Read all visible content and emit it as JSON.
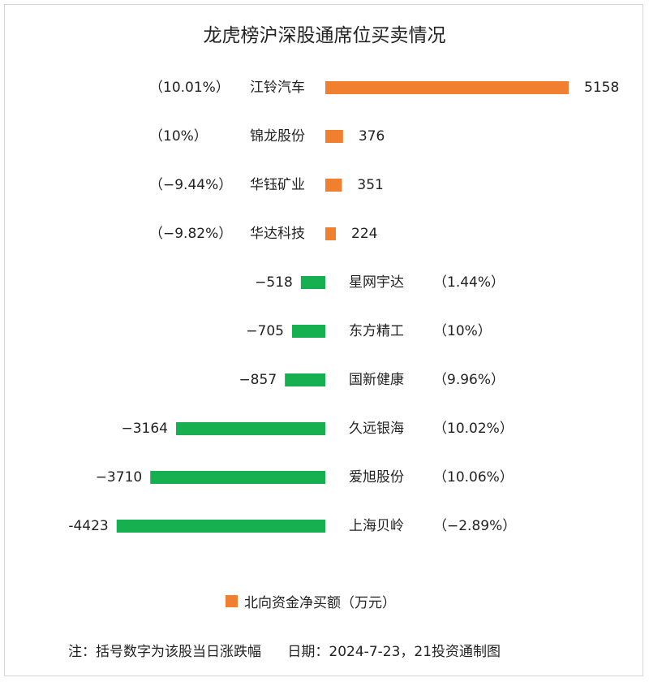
{
  "title": "龙虎榜沪深股通席位买卖情况",
  "colors": {
    "positive": "#f07f30",
    "negative": "#16b050",
    "text": "#222222"
  },
  "chart_data": {
    "type": "bar",
    "orientation": "horizontal",
    "title": "龙虎榜沪深股通席位买卖情况",
    "series": [
      {
        "name": "北向资金净买额（万元）",
        "values": [
          5158,
          376,
          351,
          224,
          -518,
          -705,
          -857,
          -3164,
          -3710,
          -4423
        ]
      }
    ],
    "categories": [
      "江铃汽车",
      "锦龙股份",
      "华钰矿业",
      "华达科技",
      "星网宇达",
      "东方精工",
      "国新健康",
      "久远银海",
      "爱旭股份",
      "上海贝岭"
    ],
    "bars": [
      {
        "name": "江铃汽车",
        "value": 5158,
        "value_label": "5158",
        "change_label": "（10.01%）"
      },
      {
        "name": "锦龙股份",
        "value": 376,
        "value_label": "376",
        "change_label": "（10%）"
      },
      {
        "name": "华钰矿业",
        "value": 351,
        "value_label": "351",
        "change_label": "（−9.44%）"
      },
      {
        "name": "华达科技",
        "value": 224,
        "value_label": "224",
        "change_label": "（−9.82%）"
      },
      {
        "name": "星网宇达",
        "value": -518,
        "value_label": "−518",
        "change_label": "（1.44%）"
      },
      {
        "name": "东方精工",
        "value": -705,
        "value_label": "−705",
        "change_label": "（10%）"
      },
      {
        "name": "国新健康",
        "value": -857,
        "value_label": "−857",
        "change_label": "（9.96%）"
      },
      {
        "name": "久远银海",
        "value": -3164,
        "value_label": "−3164",
        "change_label": "（10.02%）"
      },
      {
        "name": "爱旭股份",
        "value": -3710,
        "value_label": "−3710",
        "change_label": "（10.06%）"
      },
      {
        "name": "上海贝岭",
        "value": -4423,
        "value_label": "-4423",
        "change_label": "（−2.89%）"
      }
    ],
    "legend": {
      "label": "北向资金净买额（万元）",
      "placement": "bottom"
    },
    "grid": false
  },
  "footnote": "注：括号数字为该股当日涨跌幅      日期：2024-7-23，21投资通制图"
}
